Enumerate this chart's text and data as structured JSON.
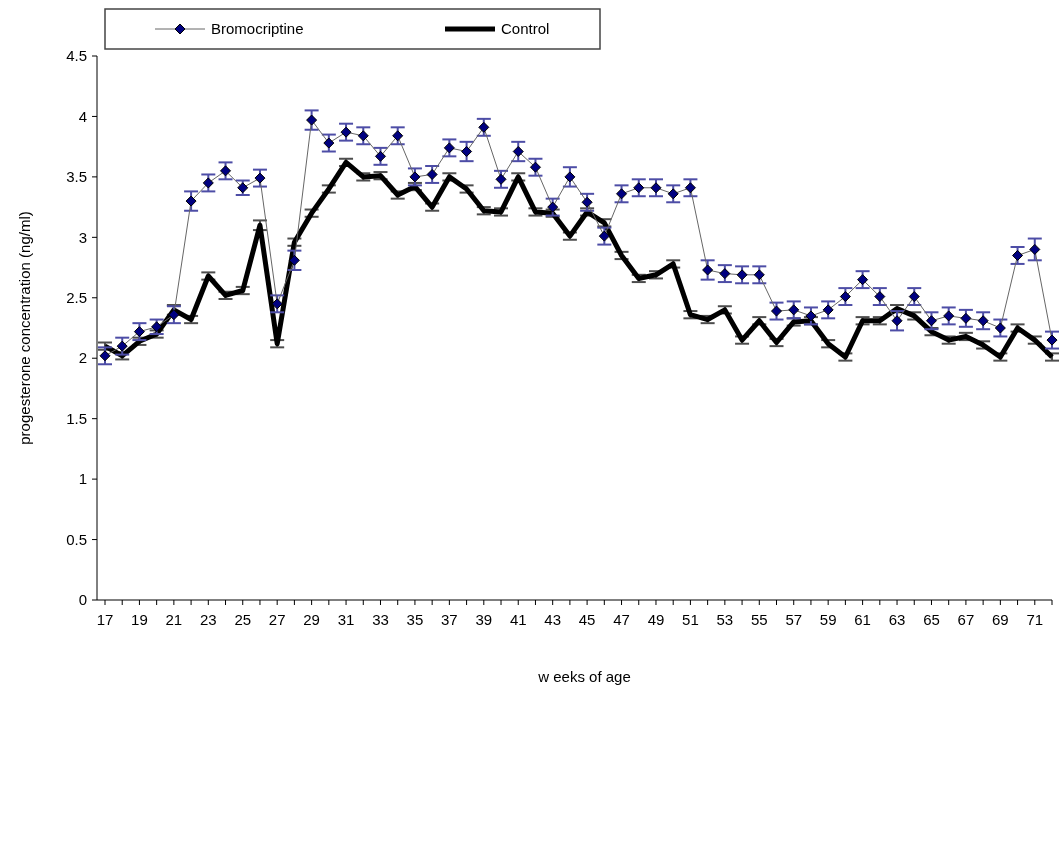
{
  "chart_data": {
    "type": "line",
    "xlabel": "w eeks of age",
    "ylabel": "progesterone concentration (ng/ml)",
    "categories": [
      "17",
      null,
      "19",
      null,
      "21",
      null,
      "23",
      null,
      "25",
      null,
      "27",
      null,
      "29",
      null,
      "31",
      null,
      "33",
      null,
      "35",
      null,
      "37",
      null,
      "39",
      null,
      "41",
      null,
      "43",
      null,
      "45",
      null,
      "47",
      null,
      "49",
      null,
      "51",
      null,
      "53",
      null,
      "55",
      null,
      "57",
      null,
      "59",
      null,
      "61",
      null,
      "63",
      null,
      "65",
      null,
      "67",
      null,
      "69",
      null,
      "71",
      null
    ],
    "ylim": [
      0,
      4.5
    ],
    "yticks": [
      0,
      0.5,
      1,
      1.5,
      2,
      2.5,
      3,
      3.5,
      4,
      4.5
    ],
    "grid": false,
    "legend": "top left",
    "line_style": "solid",
    "series": [
      {
        "name": "Bromocriptine",
        "color": "#000080",
        "marker": "diamond",
        "values": [
          2.02,
          2.1,
          2.22,
          2.26,
          2.36,
          3.3,
          3.45,
          3.55,
          3.41,
          3.49,
          2.45,
          2.81,
          3.97,
          3.78,
          3.87,
          3.84,
          3.67,
          3.84,
          3.5,
          3.52,
          3.74,
          3.71,
          3.91,
          3.48,
          3.71,
          3.58,
          3.25,
          3.5,
          3.29,
          3.01,
          3.36,
          3.41,
          3.41,
          3.36,
          3.41,
          2.73,
          2.7,
          2.69,
          2.69,
          2.39,
          2.4,
          2.35,
          2.4,
          2.51,
          2.65,
          2.51,
          2.31,
          2.51,
          2.31,
          2.35,
          2.33,
          2.31,
          2.25,
          2.85,
          2.9,
          2.15
        ],
        "errors": [
          0.07,
          0.07,
          0.07,
          0.06,
          0.07,
          0.08,
          0.07,
          0.07,
          0.06,
          0.07,
          0.07,
          0.08,
          0.08,
          0.07,
          0.07,
          0.07,
          0.07,
          0.07,
          0.07,
          0.07,
          0.07,
          0.08,
          0.07,
          0.07,
          0.08,
          0.07,
          0.07,
          0.08,
          0.07,
          0.07,
          0.07,
          0.07,
          0.07,
          0.07,
          0.07,
          0.08,
          0.07,
          0.07,
          0.07,
          0.07,
          0.07,
          0.07,
          0.07,
          0.07,
          0.07,
          0.07,
          0.08,
          0.07,
          0.07,
          0.07,
          0.07,
          0.07,
          0.07,
          0.07,
          0.09,
          0.07
        ]
      },
      {
        "name": "Control",
        "color": "#000000",
        "marker": "none",
        "values": [
          2.1,
          2.02,
          2.14,
          2.2,
          2.4,
          2.32,
          2.68,
          2.52,
          2.56,
          3.1,
          2.12,
          2.96,
          3.2,
          3.4,
          3.62,
          3.5,
          3.51,
          3.35,
          3.42,
          3.25,
          3.5,
          3.4,
          3.22,
          3.21,
          3.5,
          3.21,
          3.2,
          3.01,
          3.21,
          3.12,
          2.85,
          2.66,
          2.69,
          2.78,
          2.36,
          2.32,
          2.4,
          2.15,
          2.31,
          2.13,
          2.3,
          2.31,
          2.12,
          2.01,
          2.31,
          2.31,
          2.41,
          2.35,
          2.22,
          2.15,
          2.18,
          2.11,
          2.01,
          2.25,
          2.15,
          2.01
        ],
        "errors": [
          0.03,
          0.03,
          0.03,
          0.03,
          0.04,
          0.03,
          0.03,
          0.03,
          0.03,
          0.04,
          0.03,
          0.03,
          0.03,
          0.03,
          0.03,
          0.03,
          0.03,
          0.03,
          0.03,
          0.03,
          0.03,
          0.03,
          0.03,
          0.03,
          0.03,
          0.03,
          0.03,
          0.03,
          0.03,
          0.03,
          0.03,
          0.03,
          0.03,
          0.03,
          0.03,
          0.03,
          0.03,
          0.03,
          0.03,
          0.03,
          0.03,
          0.03,
          0.03,
          0.03,
          0.03,
          0.03,
          0.03,
          0.03,
          0.03,
          0.03,
          0.03,
          0.03,
          0.03,
          0.03,
          0.03,
          0.03
        ]
      }
    ]
  }
}
